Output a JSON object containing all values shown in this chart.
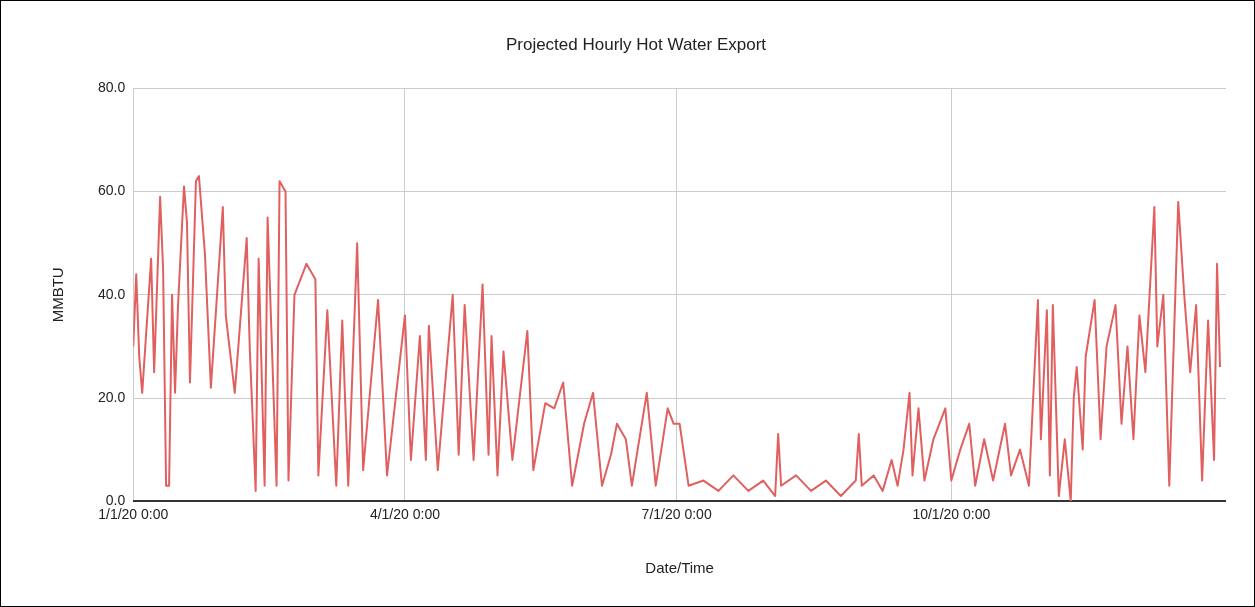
{
  "chart_data": {
    "type": "line",
    "title": "Projected Hourly Hot Water Export",
    "xlabel": "Date/Time",
    "ylabel": "MMBTU",
    "x": [
      "2020-01-01",
      "2020-01-02",
      "2020-01-03",
      "2020-01-04",
      "2020-01-07",
      "2020-01-08",
      "2020-01-10",
      "2020-01-11",
      "2020-01-12",
      "2020-01-13",
      "2020-01-14",
      "2020-01-15",
      "2020-01-16",
      "2020-01-18",
      "2020-01-19",
      "2020-01-20",
      "2020-01-22",
      "2020-01-23",
      "2020-01-25",
      "2020-01-27",
      "2020-01-31",
      "2020-02-01",
      "2020-02-04",
      "2020-02-08",
      "2020-02-09",
      "2020-02-11",
      "2020-02-12",
      "2020-02-14",
      "2020-02-15",
      "2020-02-18",
      "2020-02-19",
      "2020-02-21",
      "2020-02-22",
      "2020-02-24",
      "2020-02-28",
      "2020-03-02",
      "2020-03-03",
      "2020-03-06",
      "2020-03-09",
      "2020-03-11",
      "2020-03-13",
      "2020-03-16",
      "2020-03-18",
      "2020-03-23",
      "2020-03-26",
      "2020-04-01",
      "2020-04-03",
      "2020-04-06",
      "2020-04-08",
      "2020-04-09",
      "2020-04-12",
      "2020-04-17",
      "2020-04-19",
      "2020-04-21",
      "2020-04-24",
      "2020-04-27",
      "2020-04-29",
      "2020-04-30",
      "2020-05-02",
      "2020-05-04",
      "2020-05-07",
      "2020-05-12",
      "2020-05-14",
      "2020-05-18",
      "2020-05-21",
      "2020-05-24",
      "2020-05-27",
      "2020-05-31",
      "2020-06-03",
      "2020-06-06",
      "2020-06-09",
      "2020-06-11",
      "2020-06-14",
      "2020-06-16",
      "2020-06-21",
      "2020-06-24",
      "2020-06-28",
      "2020-06-30",
      "2020-07-02",
      "2020-07-05",
      "2020-07-10",
      "2020-07-15",
      "2020-07-20",
      "2020-07-25",
      "2020-07-30",
      "2020-08-03",
      "2020-08-04",
      "2020-08-05",
      "2020-08-10",
      "2020-08-15",
      "2020-08-20",
      "2020-08-25",
      "2020-08-30",
      "2020-08-31",
      "2020-09-01",
      "2020-09-05",
      "2020-09-08",
      "2020-09-11",
      "2020-09-13",
      "2020-09-15",
      "2020-09-17",
      "2020-09-18",
      "2020-09-20",
      "2020-09-22",
      "2020-09-25",
      "2020-09-29",
      "2020-10-01",
      "2020-10-04",
      "2020-10-07",
      "2020-10-09",
      "2020-10-12",
      "2020-10-15",
      "2020-10-19",
      "2020-10-21",
      "2020-10-24",
      "2020-10-27",
      "2020-10-30",
      "2020-10-31",
      "2020-11-02",
      "2020-11-03",
      "2020-11-04",
      "2020-11-06",
      "2020-11-08",
      "2020-11-10",
      "2020-11-11",
      "2020-11-12",
      "2020-11-14",
      "2020-11-15",
      "2020-11-18",
      "2020-11-20",
      "2020-11-22",
      "2020-11-25",
      "2020-11-27",
      "2020-11-29",
      "2020-12-01",
      "2020-12-03",
      "2020-12-05",
      "2020-12-08",
      "2020-12-09",
      "2020-12-11",
      "2020-12-13",
      "2020-12-16",
      "2020-12-18",
      "2020-12-20",
      "2020-12-22",
      "2020-12-24",
      "2020-12-26",
      "2020-12-28",
      "2020-12-29",
      "2020-12-30"
    ],
    "series": [
      {
        "color": "#e06060",
        "values": [
          30,
          44,
          28,
          21,
          47,
          25,
          59,
          45,
          3,
          3,
          40,
          21,
          38,
          61,
          54,
          23,
          62,
          63,
          48,
          22,
          57,
          36,
          21,
          51,
          30,
          2,
          47,
          3,
          55,
          3,
          62,
          60,
          4,
          40,
          46,
          43,
          5,
          37,
          3,
          35,
          3,
          50,
          6,
          39,
          5,
          36,
          8,
          32,
          8,
          34,
          6,
          40,
          9,
          38,
          8,
          42,
          9,
          32,
          5,
          29,
          8,
          33,
          6,
          19,
          18,
          23,
          3,
          15,
          21,
          3,
          9,
          15,
          12,
          3,
          21,
          3,
          18,
          15,
          15,
          3,
          4,
          2,
          5,
          2,
          4,
          1,
          13,
          3,
          5,
          2,
          4,
          1,
          4,
          13,
          3,
          5,
          2,
          8,
          3,
          10,
          21,
          5,
          18,
          4,
          12,
          18,
          4,
          10,
          15,
          3,
          12,
          4,
          15,
          5,
          10,
          3,
          39,
          12,
          37,
          5,
          38,
          1,
          12,
          0,
          20,
          26,
          10,
          28,
          39,
          12,
          30,
          38,
          15,
          30,
          12,
          36,
          25,
          57,
          30,
          40,
          3,
          58,
          40,
          25,
          38,
          4,
          35,
          8,
          46,
          26
        ]
      }
    ],
    "xlim": [
      "2020-01-01",
      "2021-01-01"
    ],
    "xticks": [
      {
        "value": "2020-01-01",
        "label": "1/1/20 0:00"
      },
      {
        "value": "2020-04-01",
        "label": "4/1/20 0:00"
      },
      {
        "value": "2020-07-01",
        "label": "7/1/20 0:00"
      },
      {
        "value": "2020-10-01",
        "label": "10/1/20 0:00"
      }
    ],
    "ylim": [
      0,
      80
    ],
    "yticks": [
      {
        "value": 0,
        "label": "0.0"
      },
      {
        "value": 20,
        "label": "20.0"
      },
      {
        "value": 40,
        "label": "40.0"
      },
      {
        "value": 60,
        "label": "60.0"
      },
      {
        "value": 80,
        "label": "80.0"
      }
    ],
    "grid": true,
    "legend": false,
    "marker": "none",
    "line_style": "solid"
  }
}
